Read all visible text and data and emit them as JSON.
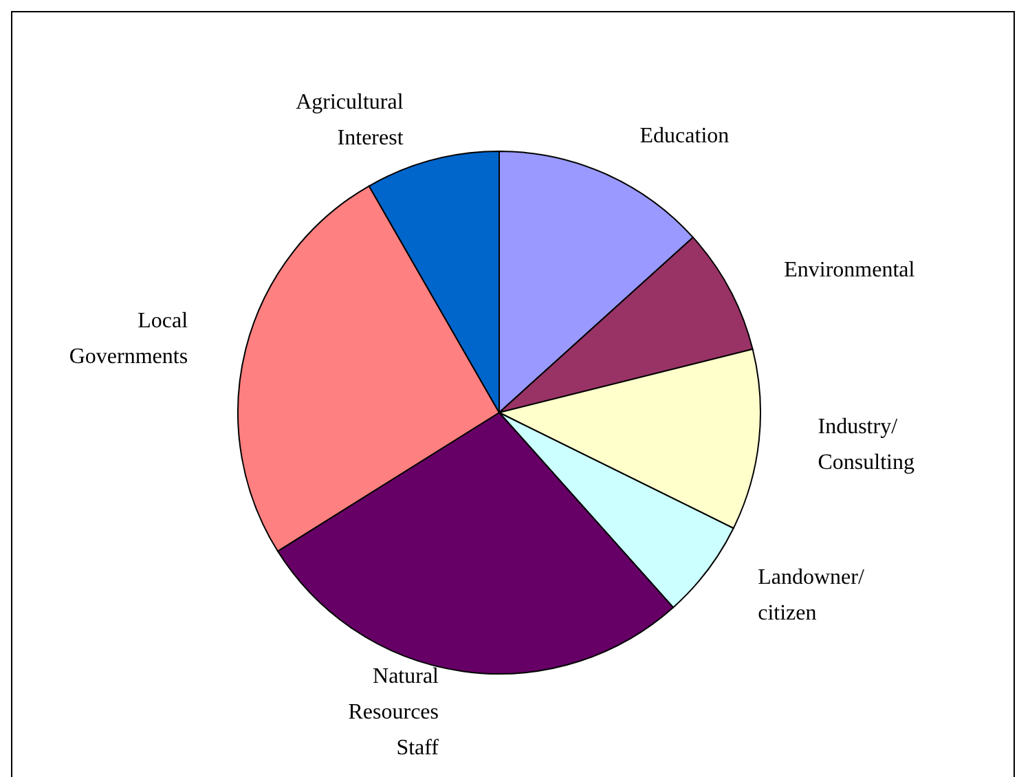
{
  "chart_data": {
    "type": "pie",
    "categories": [
      "Education",
      "Environmental",
      "Industry/\nConsulting",
      "Landowner/\ncitizen",
      "Natural\nResources\nStaff",
      "Local\nGovernments",
      "Agricultural\nInterest"
    ],
    "values": [
      13.3,
      7.8,
      11.2,
      6.1,
      27.7,
      25.6,
      8.3
    ],
    "colors": [
      "#9999ff",
      "#993366",
      "#ffffcc",
      "#ccffff",
      "#660066",
      "#ff8080",
      "#0066cc"
    ],
    "legend": false
  }
}
